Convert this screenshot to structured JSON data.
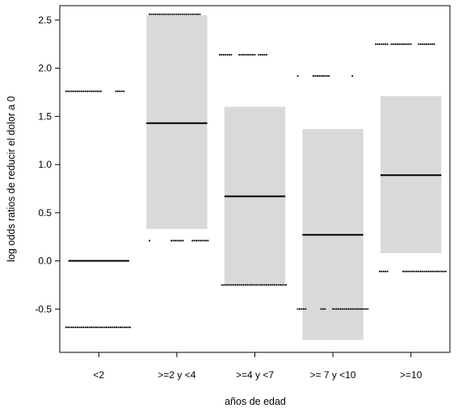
{
  "chart_data": {
    "type": "box",
    "xlabel": "años de edad",
    "ylabel": "log odds ratios de reducir el dolor a 0",
    "categories": [
      "<2",
      ">=2 y <4",
      ">=4 y <7",
      ">= 7 y <10",
      ">=10"
    ],
    "yticks": [
      -0.5,
      0.0,
      0.5,
      1.0,
      1.5,
      2.0,
      2.5
    ],
    "ytick_labels": [
      "-0.5",
      "0.0",
      "0.5",
      "1.0",
      "1.5",
      "2.0",
      "2.5"
    ],
    "ylim": [
      -0.95,
      2.65
    ],
    "grid": false,
    "box_color": "#d9d9d9",
    "median_color": "#000000",
    "groups": [
      {
        "category": "<2",
        "q1": 0.0,
        "median": 0.0,
        "q3": 0.0,
        "point_rows": [
          {
            "y": 1.76,
            "x_spans": [
              [
                -0.42,
                0.05
              ],
              [
                0.22,
                0.32
              ]
            ]
          },
          {
            "y": -0.69,
            "x_spans": [
              [
                -0.42,
                0.4
              ]
            ]
          }
        ]
      },
      {
        "category": ">=2 y <4",
        "q1": 0.33,
        "median": 1.43,
        "q3": 2.55,
        "point_rows": [
          {
            "y": 2.56,
            "x_spans": [
              [
                -0.35,
                0.3
              ]
            ]
          },
          {
            "y": 0.21,
            "x_spans": [
              [
                -0.35,
                -0.35
              ],
              [
                -0.07,
                0.1
              ],
              [
                0.2,
                0.4
              ]
            ]
          }
        ]
      },
      {
        "category": ">=4 y <7",
        "q1": -0.25,
        "median": 0.67,
        "q3": 1.6,
        "point_rows": [
          {
            "y": 2.14,
            "x_spans": [
              [
                -0.45,
                -0.3
              ],
              [
                -0.2,
                0.0
              ],
              [
                0.05,
                0.15
              ]
            ]
          },
          {
            "y": -0.25,
            "x_spans": [
              [
                -0.42,
                0.4
              ]
            ]
          }
        ]
      },
      {
        "category": ">= 7 y <10",
        "q1": -0.82,
        "median": 0.27,
        "q3": 1.37,
        "point_rows": [
          {
            "y": 1.92,
            "x_spans": [
              [
                -0.45,
                -0.45
              ],
              [
                -0.25,
                -0.05
              ],
              [
                0.25,
                0.25
              ]
            ]
          },
          {
            "y": -0.5,
            "x_spans": [
              [
                -0.45,
                -0.35
              ],
              [
                -0.15,
                -0.1
              ],
              [
                0.0,
                0.45
              ]
            ]
          }
        ]
      },
      {
        "category": ">=10",
        "q1": 0.08,
        "median": 0.89,
        "q3": 1.71,
        "point_rows": [
          {
            "y": 2.25,
            "x_spans": [
              [
                -0.45,
                -0.3
              ],
              [
                -0.25,
                0.0
              ],
              [
                0.1,
                0.3
              ]
            ]
          },
          {
            "y": -0.11,
            "x_spans": [
              [
                -0.4,
                -0.3
              ],
              [
                -0.1,
                0.45
              ]
            ]
          }
        ]
      }
    ]
  }
}
